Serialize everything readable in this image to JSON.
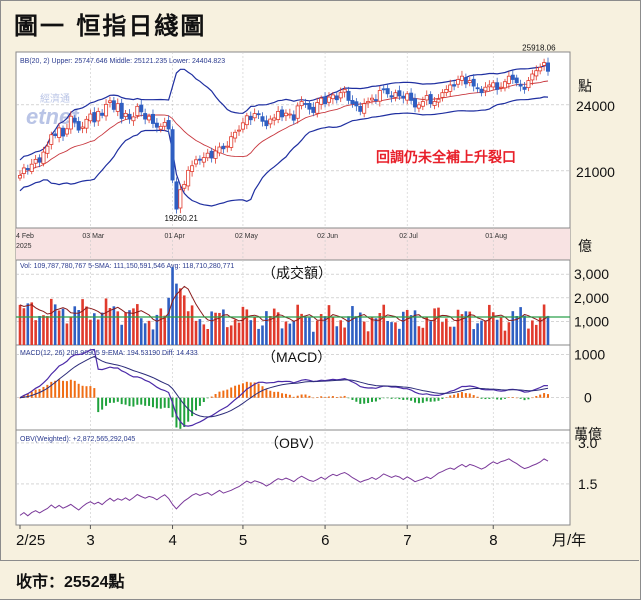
{
  "title": "圖一 恒指日綫圖",
  "footer": "收市：25524點",
  "watermark": "經濟通 etnet",
  "colors": {
    "up": "#e03a2c",
    "down": "#2f5fc2",
    "band": "#1f2fa0",
    "price_line": "#c8383f",
    "vol_ma": "#8a1c1c",
    "macd": "#4b2aa8",
    "signal": "#2c2c7a",
    "hist_pos": "#f06d14",
    "hist_neg": "#1fa23c",
    "obv": "#7b3a9a",
    "annotation": "#e8202a",
    "ma_vol": "#2aa04a"
  },
  "chart_data": [
    {
      "type": "candlestick",
      "panel": "price",
      "legend": "BB(20, 2)  Upper: 25747.646  Middle: 25121.235  Lower: 24404.823",
      "unit_label": "點",
      "yticks": [
        {
          "v": 21000,
          "label": "21000"
        },
        {
          "v": 24000,
          "label": "24000"
        }
      ],
      "ylim": [
        18400,
        26400
      ],
      "xticks": [
        {
          "label": "4 Feb\n2025",
          "t": 0
        },
        {
          "label": "03 Mar",
          "t": 18
        },
        {
          "label": "01 Apr",
          "t": 39
        },
        {
          "label": "02 May",
          "t": 57
        },
        {
          "label": "02 Jun",
          "t": 78
        },
        {
          "label": "02 Jul",
          "t": 99
        },
        {
          "label": "01 Aug",
          "t": 121
        }
      ],
      "annotations": [
        {
          "text": "25918.06",
          "kind": "high"
        },
        {
          "text": "19260.21",
          "kind": "low"
        },
        {
          "text": "回調仍未全補上升裂口",
          "kind": "note"
        }
      ],
      "closes": [
        20790,
        21130,
        21050,
        21300,
        21520,
        21390,
        21850,
        22120,
        22640,
        22600,
        22950,
        22580,
        22910,
        23480,
        23210,
        22850,
        22990,
        23340,
        23580,
        23220,
        23700,
        23520,
        24020,
        24180,
        23790,
        24050,
        23380,
        23610,
        23350,
        23450,
        23930,
        23680,
        23350,
        23480,
        23150,
        22980,
        23020,
        23200,
        22900,
        20580,
        19260,
        20140,
        20380,
        21020,
        21230,
        21500,
        21480,
        21600,
        21800,
        21580,
        21900,
        22080,
        22000,
        22120,
        22550,
        22750,
        22850,
        23180,
        23500,
        23320,
        23600,
        23550,
        23250,
        23050,
        23350,
        23400,
        23700,
        23450,
        23620,
        23580,
        23300,
        23950,
        24150,
        24050,
        23800,
        23650,
        24100,
        24300,
        24050,
        24350,
        24450,
        24230,
        24550,
        24700,
        24200,
        24050,
        23950,
        23700,
        24050,
        24150,
        24300,
        24220,
        24650,
        24700,
        24500,
        24350,
        24550,
        24400,
        24300,
        24500,
        24200,
        23900,
        24000,
        24150,
        24420,
        24050,
        24150,
        24250,
        24550,
        24700,
        24900,
        24850,
        25150,
        25300,
        24950,
        25100,
        24850,
        24750,
        24550,
        24800,
        24900,
        25000,
        24700,
        24800,
        25050,
        25300,
        25150,
        25000,
        24850,
        24700,
        25100,
        25400,
        25550,
        25700,
        25918,
        25524
      ]
    },
    {
      "type": "bar",
      "panel": "volume",
      "legend": "Vol: 109,787,780,767  5-SMA: 111,150,591,546  Avg: 118,710,280,771",
      "unit_label": "億",
      "yticks": [
        {
          "v": 1000,
          "label": "1,000"
        },
        {
          "v": 2000,
          "label": "2,000"
        },
        {
          "v": 3000,
          "label": "3,000"
        }
      ],
      "ylim": [
        0,
        3600
      ],
      "avg_line": 1187,
      "caption": "（成交額）"
    },
    {
      "type": "line",
      "panel": "macd",
      "legend": "MACD(12, 26)  208.96905  9-EMA: 194.53190  Diff: 14.433",
      "yticks": [
        {
          "v": 0,
          "label": "0"
        },
        {
          "v": 1000,
          "label": "1000"
        }
      ],
      "ylim": [
        -700,
        1150
      ],
      "caption": "（MACD）"
    },
    {
      "type": "line",
      "panel": "obv",
      "legend": "OBV(Weighted): +2,872,565,292,045",
      "unit_label": "萬億",
      "yticks": [
        {
          "v": 1.5,
          "label": "1.5"
        },
        {
          "v": 3.0,
          "label": "3.0"
        }
      ],
      "ylim": [
        0,
        3.4
      ],
      "caption": "（OBV）"
    }
  ],
  "month_axis": {
    "labels": [
      "2/25",
      "3",
      "4",
      "5",
      "6",
      "7",
      "8"
    ],
    "t": [
      0,
      18,
      39,
      57,
      78,
      99,
      121
    ],
    "unit": "月/年"
  }
}
